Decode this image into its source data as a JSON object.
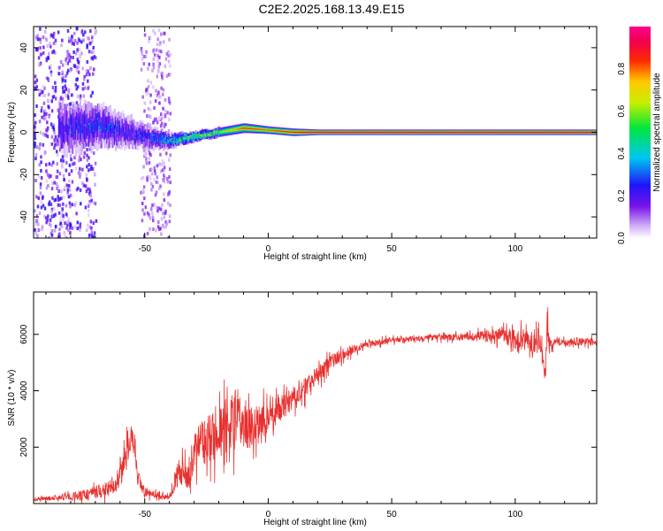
{
  "title": "C2E2.2025.168.13.49.E15",
  "chart_data": [
    {
      "type": "heatmap",
      "title": "",
      "xlabel": "Height of straight line (km)",
      "ylabel": "Frequency (Hz)",
      "xlim": [
        -95,
        133
      ],
      "ylim": [
        -50,
        50
      ],
      "xticks": [
        -50,
        0,
        50,
        100
      ],
      "yticks": [
        -40,
        -20,
        0,
        20,
        40
      ],
      "colorbar": {
        "label": "Normalized spectral amplitude",
        "range": [
          0.0,
          1.0
        ],
        "ticks": [
          "0.0",
          "0.2",
          "0.4",
          "0.6",
          "0.8"
        ],
        "colormap": "rainbow (white→violet→blue→cyan→green→yellow→red→magenta)"
      },
      "ridge": {
        "description": "dominant frequency ridge near 0 Hz",
        "x": [
          -80,
          -70,
          -60,
          -50,
          -40,
          -30,
          -20,
          -10,
          0,
          10,
          20,
          60,
          100,
          133
        ],
        "frequency": [
          2,
          3,
          1,
          -2,
          -4,
          -2,
          0,
          2,
          1,
          0,
          0,
          0,
          0,
          0
        ],
        "amplitude": [
          0.3,
          0.35,
          0.3,
          0.3,
          0.45,
          0.7,
          0.6,
          0.85,
          0.8,
          0.9,
          0.95,
          0.95,
          0.95,
          0.95
        ],
        "spread_hz": [
          10,
          9,
          7,
          5,
          3,
          2,
          2,
          2,
          1.5,
          1.5,
          1,
          1,
          1,
          1
        ]
      },
      "noise_regions": [
        {
          "x": [
            -95,
            -70
          ],
          "frequency_range": [
            -50,
            50
          ],
          "amplitude": 0.25
        },
        {
          "x": [
            -52,
            -40
          ],
          "frequency_range": [
            -50,
            50
          ],
          "amplitude": 0.15
        }
      ]
    },
    {
      "type": "line",
      "title": "",
      "xlabel": "Height of straight line (km)",
      "ylabel": "SNR (10 * v/v)",
      "xlim": [
        -95,
        133
      ],
      "ylim": [
        0,
        7500
      ],
      "xticks": [
        -50,
        0,
        50,
        100
      ],
      "yticks": [
        2000,
        4000,
        6000
      ],
      "series": [
        {
          "color": "#e8312f",
          "x": [
            -95,
            -85,
            -75,
            -65,
            -60,
            -57,
            -55,
            -53,
            -50,
            -45,
            -40,
            -38,
            -35,
            -33,
            -30,
            -25,
            -20,
            -15,
            -12,
            -10,
            -5,
            0,
            5,
            10,
            15,
            20,
            25,
            30,
            35,
            40,
            50,
            60,
            70,
            80,
            90,
            95,
            100,
            105,
            110,
            112,
            113,
            114,
            116,
            120,
            125,
            133
          ],
          "y": [
            150,
            200,
            300,
            500,
            900,
            2000,
            2600,
            900,
            400,
            300,
            200,
            800,
            1200,
            900,
            1800,
            2300,
            2600,
            2800,
            3200,
            2600,
            2800,
            3000,
            3400,
            3700,
            4100,
            4600,
            5000,
            5300,
            5500,
            5650,
            5800,
            5850,
            5900,
            5900,
            5950,
            6000,
            5800,
            5800,
            5700,
            4500,
            6400,
            5600,
            5800,
            5700,
            5750,
            5700
          ],
          "noise": [
            80,
            100,
            250,
            350,
            500,
            700,
            600,
            400,
            200,
            150,
            100,
            500,
            700,
            600,
            900,
            1100,
            1200,
            1300,
            1300,
            1100,
            800,
            700,
            600,
            500,
            450,
            400,
            350,
            250,
            200,
            150,
            120,
            120,
            130,
            150,
            250,
            350,
            450,
            500,
            500,
            400,
            600,
            300,
            200,
            180,
            170,
            160
          ]
        }
      ]
    }
  ]
}
